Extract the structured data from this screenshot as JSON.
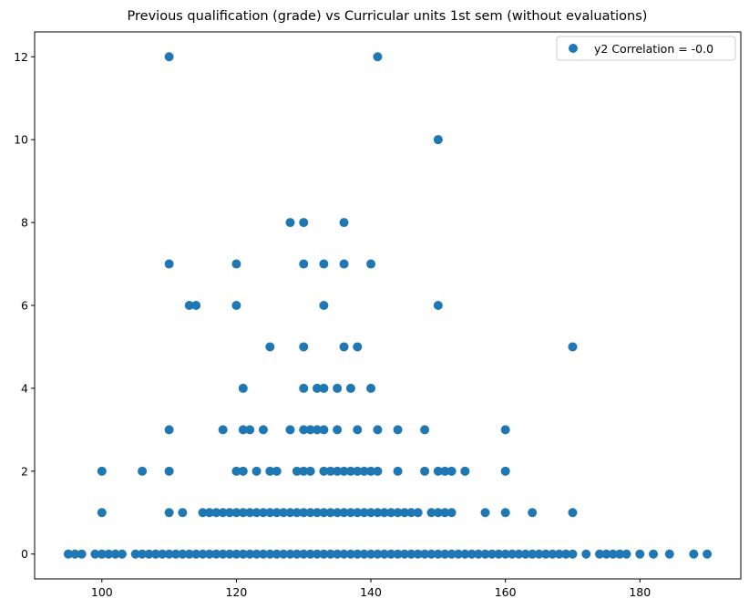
{
  "chart_data": {
    "type": "scatter",
    "title": "Previous qualification (grade) vs Curricular units 1st sem (without evaluations)",
    "xlabel": "",
    "ylabel": "",
    "xlim": [
      90,
      195
    ],
    "ylim": [
      -0.6,
      12.6
    ],
    "xticks": [
      100,
      120,
      140,
      160,
      180
    ],
    "yticks": [
      0,
      2,
      4,
      6,
      8,
      10,
      12
    ],
    "grid": false,
    "legend": {
      "placement": "top-right",
      "entries": [
        "y2 Correlation = -0.0"
      ]
    },
    "series": [
      {
        "name": "y2 Correlation = -0.0",
        "color": "#1f77b4",
        "points": [
          [
            95,
            0
          ],
          [
            96,
            0
          ],
          [
            97,
            0
          ],
          [
            99,
            0
          ],
          [
            100,
            0
          ],
          [
            101,
            0
          ],
          [
            102,
            0
          ],
          [
            103,
            0
          ],
          [
            105,
            0
          ],
          [
            106,
            0
          ],
          [
            107,
            0
          ],
          [
            108,
            0
          ],
          [
            109,
            0
          ],
          [
            110,
            0
          ],
          [
            111,
            0
          ],
          [
            112,
            0
          ],
          [
            113,
            0
          ],
          [
            114,
            0
          ],
          [
            115,
            0
          ],
          [
            116,
            0
          ],
          [
            117,
            0
          ],
          [
            118,
            0
          ],
          [
            119,
            0
          ],
          [
            120,
            0
          ],
          [
            121,
            0
          ],
          [
            122,
            0
          ],
          [
            123,
            0
          ],
          [
            124,
            0
          ],
          [
            125,
            0
          ],
          [
            126,
            0
          ],
          [
            127,
            0
          ],
          [
            128,
            0
          ],
          [
            129,
            0
          ],
          [
            130,
            0
          ],
          [
            131,
            0
          ],
          [
            132,
            0
          ],
          [
            133,
            0
          ],
          [
            134,
            0
          ],
          [
            135,
            0
          ],
          [
            136,
            0
          ],
          [
            137,
            0
          ],
          [
            138,
            0
          ],
          [
            139,
            0
          ],
          [
            140,
            0
          ],
          [
            141,
            0
          ],
          [
            142,
            0
          ],
          [
            143,
            0
          ],
          [
            144,
            0
          ],
          [
            145,
            0
          ],
          [
            146,
            0
          ],
          [
            147,
            0
          ],
          [
            148,
            0
          ],
          [
            149,
            0
          ],
          [
            150,
            0
          ],
          [
            151,
            0
          ],
          [
            152,
            0
          ],
          [
            153,
            0
          ],
          [
            154,
            0
          ],
          [
            155,
            0
          ],
          [
            156,
            0
          ],
          [
            157,
            0
          ],
          [
            158,
            0
          ],
          [
            159,
            0
          ],
          [
            160,
            0
          ],
          [
            161,
            0
          ],
          [
            162,
            0
          ],
          [
            163,
            0
          ],
          [
            164,
            0
          ],
          [
            165,
            0
          ],
          [
            166,
            0
          ],
          [
            167,
            0
          ],
          [
            168,
            0
          ],
          [
            169,
            0
          ],
          [
            170,
            0
          ],
          [
            172,
            0
          ],
          [
            174,
            0
          ],
          [
            175,
            0
          ],
          [
            176,
            0
          ],
          [
            177,
            0
          ],
          [
            178,
            0
          ],
          [
            180,
            0
          ],
          [
            182,
            0
          ],
          [
            184.4,
            0
          ],
          [
            188,
            0
          ],
          [
            190,
            0
          ],
          [
            100,
            1
          ],
          [
            110,
            1
          ],
          [
            112,
            1
          ],
          [
            115,
            1
          ],
          [
            116,
            1
          ],
          [
            117,
            1
          ],
          [
            118,
            1
          ],
          [
            119,
            1
          ],
          [
            120,
            1
          ],
          [
            121,
            1
          ],
          [
            122,
            1
          ],
          [
            123,
            1
          ],
          [
            124,
            1
          ],
          [
            125,
            1
          ],
          [
            126,
            1
          ],
          [
            127,
            1
          ],
          [
            128,
            1
          ],
          [
            129,
            1
          ],
          [
            130,
            1
          ],
          [
            131,
            1
          ],
          [
            132,
            1
          ],
          [
            133,
            1
          ],
          [
            134,
            1
          ],
          [
            135,
            1
          ],
          [
            136,
            1
          ],
          [
            137,
            1
          ],
          [
            138,
            1
          ],
          [
            139,
            1
          ],
          [
            140,
            1
          ],
          [
            141,
            1
          ],
          [
            142,
            1
          ],
          [
            143,
            1
          ],
          [
            144,
            1
          ],
          [
            145,
            1
          ],
          [
            146,
            1
          ],
          [
            147,
            1
          ],
          [
            149,
            1
          ],
          [
            150,
            1
          ],
          [
            151,
            1
          ],
          [
            152,
            1
          ],
          [
            157,
            1
          ],
          [
            160,
            1
          ],
          [
            164,
            1
          ],
          [
            170,
            1
          ],
          [
            100,
            2
          ],
          [
            106,
            2
          ],
          [
            110,
            2
          ],
          [
            120,
            2
          ],
          [
            121,
            2
          ],
          [
            123,
            2
          ],
          [
            125,
            2
          ],
          [
            126,
            2
          ],
          [
            129,
            2
          ],
          [
            130,
            2
          ],
          [
            131,
            2
          ],
          [
            133,
            2
          ],
          [
            134,
            2
          ],
          [
            135,
            2
          ],
          [
            136,
            2
          ],
          [
            137,
            2
          ],
          [
            138,
            2
          ],
          [
            139,
            2
          ],
          [
            140,
            2
          ],
          [
            141,
            2
          ],
          [
            144,
            2
          ],
          [
            148,
            2
          ],
          [
            150,
            2
          ],
          [
            151,
            2
          ],
          [
            152,
            2
          ],
          [
            154,
            2
          ],
          [
            160,
            2
          ],
          [
            110,
            3
          ],
          [
            118,
            3
          ],
          [
            121,
            3
          ],
          [
            122,
            3
          ],
          [
            124,
            3
          ],
          [
            128,
            3
          ],
          [
            130,
            3
          ],
          [
            131,
            3
          ],
          [
            132,
            3
          ],
          [
            133,
            3
          ],
          [
            135,
            3
          ],
          [
            138,
            3
          ],
          [
            141,
            3
          ],
          [
            144,
            3
          ],
          [
            148,
            3
          ],
          [
            160,
            3
          ],
          [
            121,
            4
          ],
          [
            130,
            4
          ],
          [
            132,
            4
          ],
          [
            133,
            4
          ],
          [
            135,
            4
          ],
          [
            137,
            4
          ],
          [
            140,
            4
          ],
          [
            125,
            5
          ],
          [
            130,
            5
          ],
          [
            136,
            5
          ],
          [
            138,
            5
          ],
          [
            170,
            5
          ],
          [
            113,
            6
          ],
          [
            114,
            6
          ],
          [
            120,
            6
          ],
          [
            133,
            6
          ],
          [
            150,
            6
          ],
          [
            110,
            7
          ],
          [
            120,
            7
          ],
          [
            130,
            7
          ],
          [
            133,
            7
          ],
          [
            136,
            7
          ],
          [
            140,
            7
          ],
          [
            128,
            8
          ],
          [
            130,
            8
          ],
          [
            136,
            8
          ],
          [
            150,
            10
          ],
          [
            110,
            12
          ],
          [
            141,
            12
          ]
        ]
      }
    ]
  }
}
